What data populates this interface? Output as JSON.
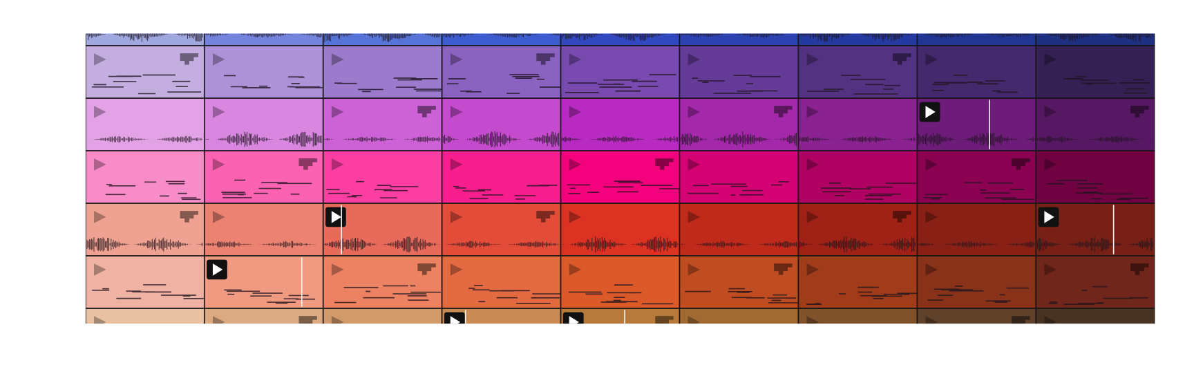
{
  "grid": {
    "rows": [
      {
        "colors": [
          "#a0a8e0",
          "#7484dc",
          "#5674d8",
          "#3c5cd0",
          "#3248c0",
          "#2c42b0",
          "#243aa0",
          "#203692",
          "#1e3082"
        ]
      },
      {
        "colors": [
          "#c4aee0",
          "#ae92d8",
          "#9c7acc",
          "#8a62c0",
          "#784ab0",
          "#643c98",
          "#543282",
          "#44296c",
          "#342052"
        ]
      },
      {
        "colors": [
          "#e4a2e6",
          "#d886e0",
          "#cc62d6",
          "#c44ace",
          "#b82ac2",
          "#a428aa",
          "#8a2292",
          "#6e1c7a",
          "#561862"
        ]
      },
      {
        "colors": [
          "#f88cc8",
          "#fc62b2",
          "#fc3ea2",
          "#f81e8e",
          "#f4027e",
          "#d40272",
          "#b00262",
          "#8c0252",
          "#700242"
        ]
      },
      {
        "colors": [
          "#f0a292",
          "#ec8272",
          "#e86a5a",
          "#e44c3a",
          "#dc3222",
          "#c02a1a",
          "#a02216",
          "#882016",
          "#782016"
        ]
      },
      {
        "colors": [
          "#f0b2a2",
          "#f09a82",
          "#ec8262",
          "#e46a42",
          "#dc5a2a",
          "#c04c22",
          "#a03c1a",
          "#88321a",
          "#70261a"
        ]
      },
      {
        "colors": [
          "#e8c2a2",
          "#dcaa82",
          "#d09a6a",
          "#c88a52",
          "#b87a3a",
          "#a06a32",
          "#80522a",
          "#60422a",
          "#483222"
        ]
      }
    ],
    "playing": [
      [
        2,
        7
      ],
      [
        4,
        2
      ],
      [
        4,
        8
      ],
      [
        5,
        1
      ],
      [
        6,
        3
      ],
      [
        6,
        4
      ]
    ]
  }
}
